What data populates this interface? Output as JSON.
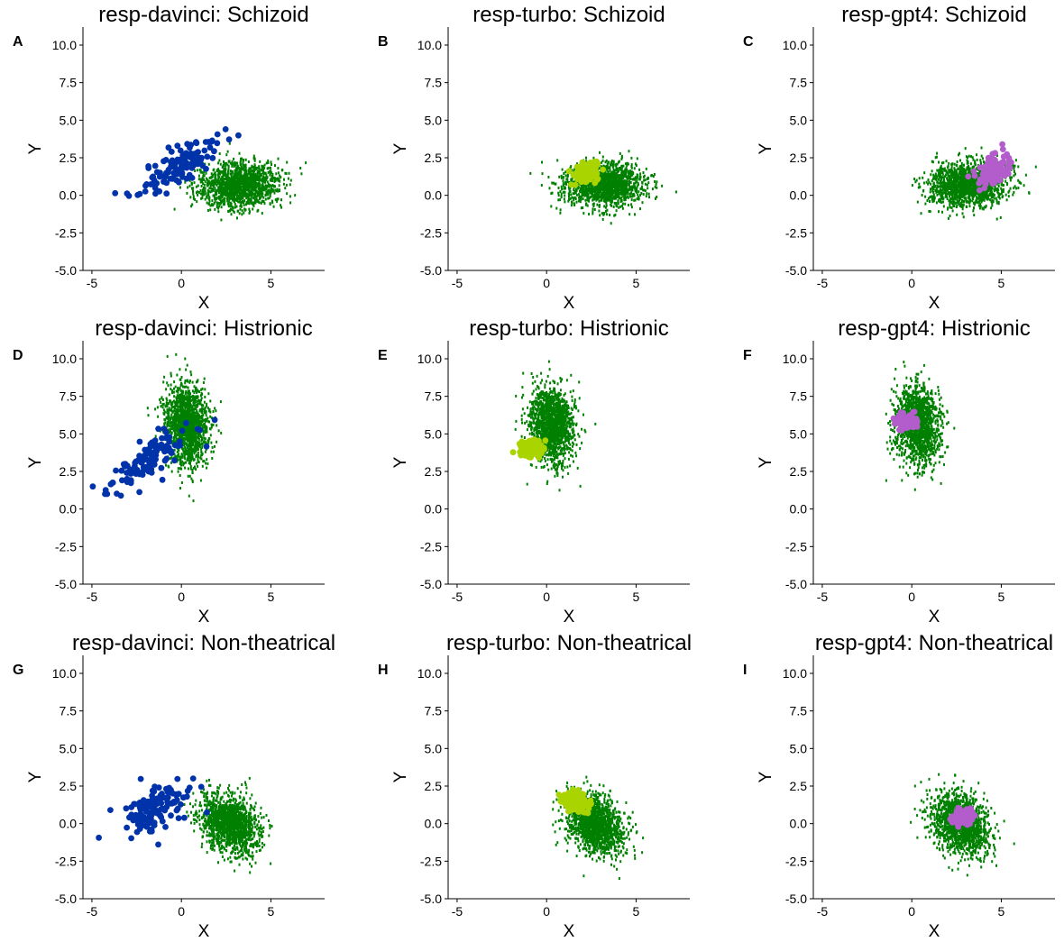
{
  "chart_data": {
    "type": "scatter",
    "xlabel": "X",
    "ylabel": "Y",
    "xlim": [
      -5.5,
      8
    ],
    "ylim": [
      -5,
      11.2
    ],
    "xticks": [
      -5,
      0,
      5
    ],
    "yticks": [
      -5.0,
      -2.5,
      0.0,
      2.5,
      5.0,
      7.5,
      10.0
    ],
    "grid": false,
    "legend": "none",
    "colors": {
      "background_cloud": "#008000",
      "resp-davinci": "#0033aa",
      "resp-turbo": "#aad400",
      "resp-gpt4": "#b35ccc"
    },
    "panels": [
      {
        "letter": "A",
        "title": "resp-davinci: Schizoid",
        "model": "resp-davinci",
        "background": {
          "center": [
            3.2,
            0.7
          ],
          "sd": [
            1.1,
            0.75
          ],
          "corr": 0.1,
          "n": 1500
        },
        "points": {
          "center": [
            0.0,
            2.0
          ],
          "sd": [
            1.1,
            1.0
          ],
          "corr": 0.75,
          "n": 120
        }
      },
      {
        "letter": "B",
        "title": "resp-turbo: Schizoid",
        "model": "resp-turbo",
        "background": {
          "center": [
            3.2,
            0.7
          ],
          "sd": [
            1.1,
            0.75
          ],
          "corr": 0.1,
          "n": 1500
        },
        "points": {
          "center": [
            2.2,
            1.5
          ],
          "sd": [
            0.35,
            0.35
          ],
          "corr": 0.2,
          "n": 120
        }
      },
      {
        "letter": "C",
        "title": "resp-gpt4: Schizoid",
        "model": "resp-gpt4",
        "background": {
          "center": [
            3.2,
            0.7
          ],
          "sd": [
            1.1,
            0.75
          ],
          "corr": 0.1,
          "n": 1500
        },
        "points": {
          "center": [
            4.6,
            1.6
          ],
          "sd": [
            0.45,
            0.5
          ],
          "corr": 0.4,
          "n": 120
        }
      },
      {
        "letter": "D",
        "title": "resp-davinci: Histrionic",
        "model": "resp-davinci",
        "background": {
          "center": [
            0.3,
            5.6
          ],
          "sd": [
            0.6,
            1.3
          ],
          "corr": -0.1,
          "n": 1500
        },
        "points": {
          "center": [
            -1.8,
            3.3
          ],
          "sd": [
            1.2,
            1.0
          ],
          "corr": 0.8,
          "n": 120
        }
      },
      {
        "letter": "E",
        "title": "resp-turbo: Histrionic",
        "model": "resp-turbo",
        "background": {
          "center": [
            0.3,
            5.6
          ],
          "sd": [
            0.6,
            1.3
          ],
          "corr": -0.1,
          "n": 1500
        },
        "points": {
          "center": [
            -0.9,
            4.0
          ],
          "sd": [
            0.3,
            0.3
          ],
          "corr": 0.1,
          "n": 120
        }
      },
      {
        "letter": "F",
        "title": "resp-gpt4: Histrionic",
        "model": "resp-gpt4",
        "background": {
          "center": [
            0.3,
            5.6
          ],
          "sd": [
            0.6,
            1.3
          ],
          "corr": -0.1,
          "n": 1500
        },
        "points": {
          "center": [
            -0.3,
            5.8
          ],
          "sd": [
            0.3,
            0.25
          ],
          "corr": 0.1,
          "n": 120
        }
      },
      {
        "letter": "G",
        "title": "resp-davinci: Non-theatrical",
        "model": "resp-davinci",
        "background": {
          "center": [
            2.7,
            0.0
          ],
          "sd": [
            0.8,
            1.0
          ],
          "corr": -0.3,
          "n": 1500
        },
        "points": {
          "center": [
            -1.5,
            1.0
          ],
          "sd": [
            1.0,
            0.9
          ],
          "corr": 0.5,
          "n": 120
        }
      },
      {
        "letter": "H",
        "title": "resp-turbo: Non-theatrical",
        "model": "resp-turbo",
        "background": {
          "center": [
            2.7,
            0.0
          ],
          "sd": [
            0.8,
            1.0
          ],
          "corr": -0.3,
          "n": 1500
        },
        "points": {
          "center": [
            1.6,
            1.4
          ],
          "sd": [
            0.35,
            0.35
          ],
          "corr": -0.2,
          "n": 120
        }
      },
      {
        "letter": "I",
        "title": "resp-gpt4: Non-theatrical",
        "model": "resp-gpt4",
        "background": {
          "center": [
            2.7,
            0.0
          ],
          "sd": [
            0.8,
            1.0
          ],
          "corr": -0.3,
          "n": 1500
        },
        "points": {
          "center": [
            2.8,
            0.4
          ],
          "sd": [
            0.3,
            0.25
          ],
          "corr": 0.1,
          "n": 120
        }
      }
    ]
  }
}
